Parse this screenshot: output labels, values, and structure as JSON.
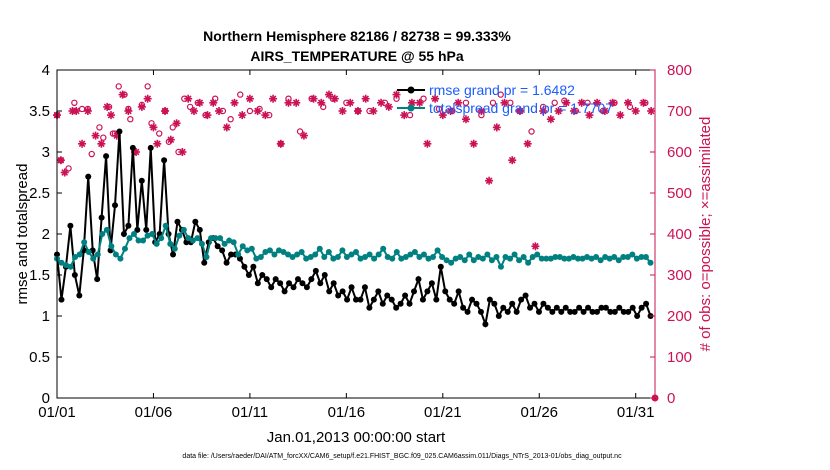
{
  "chart_data": {
    "type": "line",
    "title_line1": "Northern Hemisphere 82186 / 82738 = 99.333%",
    "title_line2": "AIRS_TEMPERATURE @ 55 hPa",
    "xlabel": "Jan.01,2013 00:00:00 start",
    "ylabel": "rmse and totalspread",
    "y2label": "# of obs: o=possible; ×=assimilated",
    "footer": "data file: /Users/raeder/DAI/ATM_forcXX/CAM6_setup/f.e21.FHIST_BGC.f09_025.CAM6assim.011/Diags_NTrS_2013-01/obs_diag_output.nc",
    "xlim": [
      1,
      32
    ],
    "ylim": [
      0,
      4
    ],
    "y2lim": [
      0,
      800
    ],
    "x_ticks": [
      1,
      6,
      11,
      16,
      21,
      26,
      31
    ],
    "x_tick_labels": [
      "01/01",
      "01/06",
      "01/11",
      "01/16",
      "01/21",
      "01/26",
      "01/31"
    ],
    "y_ticks": [
      "0",
      "0.5",
      "1",
      "1.5",
      "2",
      "2.5",
      "3",
      "3.5",
      "4"
    ],
    "y2_ticks": [
      "0",
      "100",
      "200",
      "300",
      "400",
      "500",
      "600",
      "700",
      "800"
    ],
    "colors": {
      "rmse": "#000000",
      "spread": "#008080",
      "obs": "#cc1155",
      "legend_text": "#1a5cff"
    },
    "series": [
      {
        "name": "rmse grand pr = 1.6482",
        "values": [
          1.75,
          1.2,
          1.6,
          2.1,
          1.5,
          1.25,
          1.8,
          2.7,
          1.8,
          1.45,
          2.2,
          2.95,
          1.8,
          2.35,
          3.25,
          2.0,
          2.1,
          3.05,
          2.05,
          2.65,
          2.05,
          3.05,
          1.9,
          2.0,
          2.9,
          2.0,
          1.75,
          2.15,
          2.05,
          1.9,
          1.9,
          2.15,
          2.05,
          1.65,
          1.9,
          1.95,
          1.85,
          1.8,
          1.65,
          1.75,
          1.75,
          1.7,
          1.6,
          1.5,
          1.6,
          1.4,
          1.5,
          1.45,
          1.35,
          1.45,
          1.4,
          1.3,
          1.4,
          1.35,
          1.45,
          1.4,
          1.35,
          1.45,
          1.55,
          1.4,
          1.5,
          1.3,
          1.4,
          1.25,
          1.3,
          1.2,
          1.35,
          1.2,
          1.2,
          1.35,
          1.1,
          1.2,
          1.3,
          1.15,
          1.25,
          1.2,
          1.1,
          1.15,
          1.25,
          1.15,
          1.3,
          1.45,
          1.2,
          1.3,
          1.4,
          1.2,
          1.6,
          1.3,
          1.2,
          1.15,
          1.3,
          1.1,
          1.05,
          1.2,
          1.15,
          1.05,
          0.9,
          1.2,
          1.15,
          1.0,
          1.1,
          1.05,
          1.15,
          1.05,
          1.2,
          1.25,
          1.1,
          1.15,
          1.05,
          1.15,
          1.1,
          1.05,
          1.1,
          1.05,
          1.1,
          1.05,
          1.05,
          1.1,
          1.05,
          1.1,
          1.05,
          1.05,
          1.1,
          1.1,
          1.05,
          1.05,
          1.1,
          1.05,
          1.05,
          1.1,
          1.0,
          1.1,
          1.15,
          1.0
        ]
      },
      {
        "name": "totalspread grand pr = 1.7707",
        "values": [
          1.7,
          1.65,
          1.62,
          1.6,
          1.72,
          1.75,
          1.9,
          1.78,
          1.7,
          1.75,
          2.0,
          2.05,
          1.85,
          1.75,
          1.7,
          1.82,
          1.95,
          2.0,
          1.92,
          1.92,
          1.98,
          2.0,
          1.88,
          1.95,
          2.1,
          1.88,
          1.82,
          1.98,
          2.05,
          1.95,
          1.92,
          1.95,
          1.88,
          1.72,
          1.95,
          1.95,
          1.95,
          1.88,
          1.92,
          1.9,
          1.75,
          1.85,
          1.8,
          1.82,
          1.7,
          1.72,
          1.78,
          1.8,
          1.75,
          1.8,
          1.78,
          1.75,
          1.72,
          1.75,
          1.78,
          1.7,
          1.72,
          1.75,
          1.82,
          1.72,
          1.78,
          1.7,
          1.72,
          1.8,
          1.72,
          1.75,
          1.78,
          1.7,
          1.72,
          1.75,
          1.7,
          1.75,
          1.82,
          1.72,
          1.7,
          1.78,
          1.7,
          1.72,
          1.75,
          1.78,
          1.72,
          1.75,
          1.7,
          1.72,
          1.8,
          1.72,
          1.68,
          1.65,
          1.7,
          1.72,
          1.68,
          1.75,
          1.68,
          1.72,
          1.7,
          1.75,
          1.68,
          1.72,
          1.6,
          1.72,
          1.7,
          1.75,
          1.68,
          1.72,
          1.65,
          1.72,
          1.75,
          1.7,
          1.7,
          1.7,
          1.72,
          1.72,
          1.7,
          1.7,
          1.72,
          1.7,
          1.7,
          1.72,
          1.7,
          1.72,
          1.68,
          1.72,
          1.7,
          1.72,
          1.68,
          1.72,
          1.72,
          1.75,
          1.7,
          1.72,
          1.72,
          1.65
        ]
      }
    ],
    "obs_possible": [
      [
        1.0,
        690
      ],
      [
        1.2,
        580
      ],
      [
        1.6,
        560
      ],
      [
        1.9,
        720
      ],
      [
        2.3,
        705
      ],
      [
        2.6,
        705
      ],
      [
        2.8,
        595
      ],
      [
        3.2,
        660
      ],
      [
        3.4,
        635
      ],
      [
        3.7,
        710
      ],
      [
        3.9,
        645
      ],
      [
        4.0,
        645
      ],
      [
        4.2,
        760
      ],
      [
        4.5,
        740
      ],
      [
        4.7,
        705
      ],
      [
        4.8,
        680
      ],
      [
        5.0,
        600
      ],
      [
        5.4,
        715
      ],
      [
        5.7,
        760
      ],
      [
        5.9,
        670
      ],
      [
        6.3,
        645
      ],
      [
        6.6,
        700
      ],
      [
        6.8,
        625
      ],
      [
        7.0,
        660
      ],
      [
        7.3,
        600
      ],
      [
        7.6,
        730
      ],
      [
        7.9,
        710
      ],
      [
        8.3,
        720
      ],
      [
        8.7,
        690
      ],
      [
        9.2,
        730
      ],
      [
        9.6,
        700
      ],
      [
        10.0,
        680
      ],
      [
        10.5,
        740
      ],
      [
        11.0,
        700
      ],
      [
        11.5,
        705
      ],
      [
        12.0,
        690
      ],
      [
        12.6,
        620
      ],
      [
        13.0,
        730
      ],
      [
        13.6,
        650
      ],
      [
        14.2,
        730
      ],
      [
        14.8,
        710
      ],
      [
        15.3,
        730
      ],
      [
        16.0,
        720
      ],
      [
        16.6,
        700
      ],
      [
        17.2,
        700
      ],
      [
        18.0,
        720
      ],
      [
        18.6,
        730
      ],
      [
        19.3,
        690
      ],
      [
        20.0,
        730
      ],
      [
        20.8,
        705
      ],
      [
        21.5,
        700
      ],
      [
        22.2,
        720
      ],
      [
        23.0,
        690
      ],
      [
        23.6,
        720
      ],
      [
        24.0,
        740
      ],
      [
        24.5,
        720
      ],
      [
        25.0,
        700
      ],
      [
        25.6,
        650
      ],
      [
        26.2,
        710
      ],
      [
        26.8,
        720
      ],
      [
        27.3,
        725
      ],
      [
        27.9,
        700
      ],
      [
        28.5,
        720
      ],
      [
        29.3,
        700
      ],
      [
        29.9,
        720
      ],
      [
        30.7,
        710
      ],
      [
        31.5,
        720
      ]
    ],
    "obs_assimilated": [
      [
        1.0,
        690
      ],
      [
        1.2,
        580
      ],
      [
        1.4,
        550
      ],
      [
        1.8,
        700
      ],
      [
        2.0,
        700
      ],
      [
        2.3,
        620
      ],
      [
        2.6,
        700
      ],
      [
        3.0,
        640
      ],
      [
        3.3,
        620
      ],
      [
        3.6,
        710
      ],
      [
        3.8,
        690
      ],
      [
        4.1,
        640
      ],
      [
        4.4,
        740
      ],
      [
        4.7,
        700
      ],
      [
        5.1,
        600
      ],
      [
        5.4,
        710
      ],
      [
        5.7,
        730
      ],
      [
        6.0,
        660
      ],
      [
        6.2,
        620
      ],
      [
        6.6,
        700
      ],
      [
        6.9,
        630
      ],
      [
        7.2,
        670
      ],
      [
        7.5,
        600
      ],
      [
        7.8,
        730
      ],
      [
        8.1,
        700
      ],
      [
        8.4,
        720
      ],
      [
        8.8,
        690
      ],
      [
        9.1,
        720
      ],
      [
        9.4,
        700
      ],
      [
        9.8,
        660
      ],
      [
        10.2,
        720
      ],
      [
        10.6,
        690
      ],
      [
        11.0,
        730
      ],
      [
        11.4,
        700
      ],
      [
        11.8,
        690
      ],
      [
        12.2,
        730
      ],
      [
        12.6,
        620
      ],
      [
        13.0,
        720
      ],
      [
        13.4,
        720
      ],
      [
        13.8,
        640
      ],
      [
        14.3,
        730
      ],
      [
        14.7,
        720
      ],
      [
        15.1,
        740
      ],
      [
        15.4,
        730
      ],
      [
        15.8,
        700
      ],
      [
        16.2,
        720
      ],
      [
        16.6,
        700
      ],
      [
        17.0,
        730
      ],
      [
        17.4,
        700
      ],
      [
        17.8,
        720
      ],
      [
        18.2,
        710
      ],
      [
        18.6,
        740
      ],
      [
        19.0,
        690
      ],
      [
        19.4,
        720
      ],
      [
        19.8,
        720
      ],
      [
        20.2,
        620
      ],
      [
        20.6,
        730
      ],
      [
        21.0,
        690
      ],
      [
        21.4,
        700
      ],
      [
        21.8,
        720
      ],
      [
        22.2,
        680
      ],
      [
        22.6,
        620
      ],
      [
        23.0,
        700
      ],
      [
        23.4,
        530
      ],
      [
        23.8,
        660
      ],
      [
        24.2,
        720
      ],
      [
        24.6,
        580
      ],
      [
        25.0,
        700
      ],
      [
        25.4,
        620
      ],
      [
        25.8,
        370
      ],
      [
        26.2,
        700
      ],
      [
        26.6,
        680
      ],
      [
        27.0,
        700
      ],
      [
        27.4,
        720
      ],
      [
        27.8,
        700
      ],
      [
        28.2,
        720
      ],
      [
        28.6,
        690
      ],
      [
        29.0,
        720
      ],
      [
        29.4,
        700
      ],
      [
        29.8,
        720
      ],
      [
        30.2,
        690
      ],
      [
        30.6,
        720
      ],
      [
        31.0,
        700
      ],
      [
        31.4,
        720
      ],
      [
        31.8,
        700
      ]
    ],
    "obs_zero_marker": [
      32,
      0
    ]
  }
}
